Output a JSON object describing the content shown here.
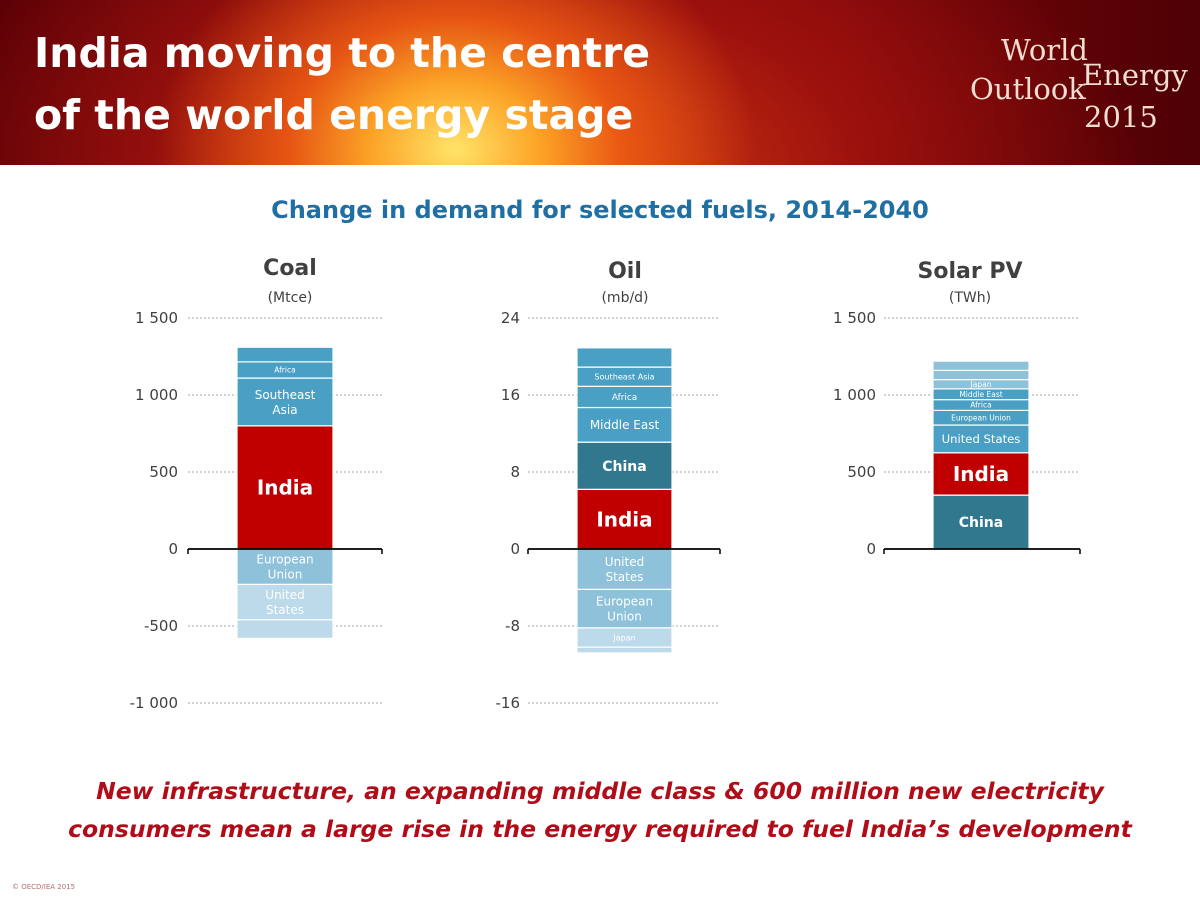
{
  "header": {
    "title_line1": "India moving to the centre",
    "title_line2": "of the world energy stage",
    "logo": {
      "word1": "World",
      "word2": "Energy",
      "word3": "Outlook",
      "year": "2015"
    }
  },
  "chart_subtitle": "Change in demand for selected fuels, 2014-2040",
  "tagline": {
    "line1": "New infrastructure, an expanding middle class & 600 million new electricity",
    "line2": "consumers mean a large rise in the energy required to fuel India’s development"
  },
  "copyright": "© OECD/IEA 2015",
  "colors": {
    "india": "#c00000",
    "teal_dark": "#31788f",
    "blue_mid": "#4aa0c4",
    "blue_light": "#8ec1da",
    "blue_pale": "#bcdae9",
    "separator": "#ffffff",
    "gridline": "#a6a6a6",
    "axis": "#000000",
    "tick_text": "#404040"
  },
  "chart_data": [
    {
      "type": "bar",
      "stacked": true,
      "title": "Coal",
      "unit": "(Mtce)",
      "ylim": [
        -1000,
        1500
      ],
      "yticks": [
        1500,
        1000,
        500,
        0,
        -500,
        -1000
      ],
      "ytick_labels": [
        "1 500",
        "1 000",
        "500",
        "0",
        "-500",
        "-1 000"
      ],
      "grid": true,
      "segments": [
        {
          "label": "India",
          "value": 800,
          "color": "#c00000"
        },
        {
          "label": "Southeast Asia",
          "value": 310,
          "color": "#4aa0c4"
        },
        {
          "label": "Africa",
          "value": 105,
          "color": "#4aa0c4"
        },
        {
          "label": "",
          "value": 95,
          "color": "#4aa0c4"
        },
        {
          "label": "European Union",
          "value": -230,
          "color": "#8ec1da"
        },
        {
          "label": "United States",
          "value": -230,
          "color": "#bcdae9"
        },
        {
          "label": "",
          "value": -120,
          "color": "#bcdae9"
        }
      ]
    },
    {
      "type": "bar",
      "stacked": true,
      "title": "Oil",
      "unit": "(mb/d)",
      "ylim": [
        -16,
        24
      ],
      "yticks": [
        24,
        16,
        8,
        0,
        -8,
        -16
      ],
      "ytick_labels": [
        "24",
        "16",
        "8",
        "0",
        "-8",
        "-16"
      ],
      "grid": true,
      "segments": [
        {
          "label": "India",
          "value": 6.2,
          "color": "#c00000"
        },
        {
          "label": "China",
          "value": 4.9,
          "color": "#31788f"
        },
        {
          "label": "Middle East",
          "value": 3.6,
          "color": "#4aa0c4"
        },
        {
          "label": "Africa",
          "value": 2.2,
          "color": "#4aa0c4"
        },
        {
          "label": "Southeast Asia",
          "value": 2.0,
          "color": "#4aa0c4"
        },
        {
          "label": "",
          "value": 2.0,
          "color": "#4aa0c4"
        },
        {
          "label": "United States",
          "value": -4.2,
          "color": "#8ec1da"
        },
        {
          "label": "European Union",
          "value": -4.0,
          "color": "#8ec1da"
        },
        {
          "label": "Japan",
          "value": -2.0,
          "color": "#bcdae9"
        },
        {
          "label": "",
          "value": -0.6,
          "color": "#bcdae9"
        }
      ]
    },
    {
      "type": "bar",
      "stacked": true,
      "title": "Solar PV",
      "unit": "(TWh)",
      "ylim": [
        0,
        1500
      ],
      "yticks": [
        1500,
        1000,
        500,
        0
      ],
      "ytick_labels": [
        "1 500",
        "1 000",
        "500",
        "0"
      ],
      "grid": true,
      "segments": [
        {
          "label": "China",
          "value": 350,
          "color": "#31788f"
        },
        {
          "label": "India",
          "value": 275,
          "color": "#c00000"
        },
        {
          "label": "United States",
          "value": 180,
          "color": "#4aa0c4"
        },
        {
          "label": "European Union",
          "value": 95,
          "color": "#4aa0c4"
        },
        {
          "label": "Africa",
          "value": 70,
          "color": "#4aa0c4"
        },
        {
          "label": "Middle East",
          "value": 70,
          "color": "#4aa0c4"
        },
        {
          "label": "Japan",
          "value": 60,
          "color": "#8ec1da"
        },
        {
          "label": "",
          "value": 60,
          "color": "#8ec1da"
        },
        {
          "label": "",
          "value": 60,
          "color": "#8ec1da"
        }
      ]
    }
  ]
}
